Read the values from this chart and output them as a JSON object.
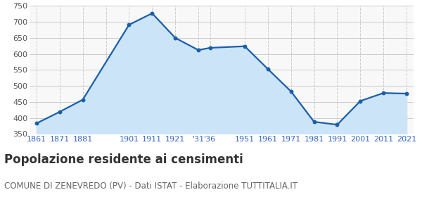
{
  "years": [
    1861,
    1871,
    1881,
    1901,
    1911,
    1921,
    1931,
    1936,
    1951,
    1961,
    1971,
    1981,
    1991,
    2001,
    2011,
    2021
  ],
  "x_labels": [
    "1861",
    "1871",
    "1881",
    "",
    "1901",
    "1911",
    "1921",
    "'31'36",
    "",
    "1951",
    "1961",
    "1971",
    "1981",
    "1991",
    "2001",
    "2011",
    "2021"
  ],
  "xtick_years": [
    1861,
    1871,
    1881,
    1891,
    1901,
    1911,
    1921,
    1931,
    1936,
    1951,
    1961,
    1971,
    1981,
    1991,
    2001,
    2011,
    2021
  ],
  "xtick_labels": [
    "1861",
    "1871",
    "1881",
    "",
    "1901",
    "1911",
    "1921",
    "'31",
    "'36",
    "1951",
    "1961",
    "1971",
    "1981",
    "1991",
    "2001",
    "2011",
    "2021"
  ],
  "population": [
    383,
    419,
    457,
    691,
    727,
    650,
    612,
    619,
    624,
    553,
    483,
    388,
    379,
    453,
    478,
    476
  ],
  "ylim": [
    350,
    750
  ],
  "yticks": [
    350,
    400,
    450,
    500,
    550,
    600,
    650,
    700,
    750
  ],
  "line_color": "#1a5fa8",
  "fill_color": "#cce4f7",
  "marker_color": "#1a5fa8",
  "grid_color": "#cccccc",
  "bg_color": "#f8f8f8",
  "title": "Popolazione residente ai censimenti",
  "subtitle": "COMUNE DI ZENEVREDO (PV) - Dati ISTAT - Elaborazione TUTTITALIA.IT",
  "title_fontsize": 12,
  "subtitle_fontsize": 8.5,
  "tick_label_color": "#3366bb",
  "tick_fontsize": 8,
  "ytick_color": "#555555"
}
